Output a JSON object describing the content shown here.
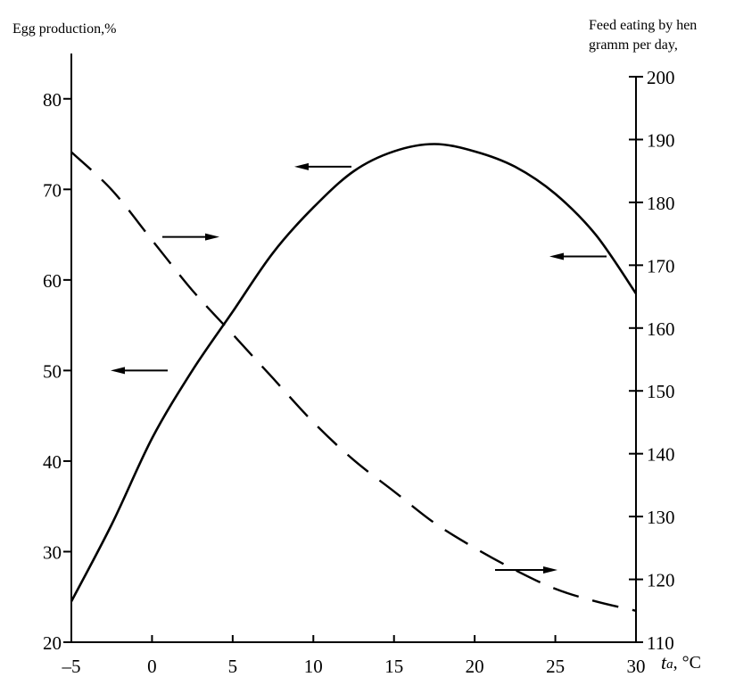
{
  "chart_data": {
    "type": "line",
    "title": "",
    "xlabel_var": "t",
    "xlabel_sub": "a",
    "xlabel_unit": ", °C",
    "ylabel_left": "Egg production,%",
    "ylabel_right_line1": "Feed eating by hen",
    "ylabel_right_line2": "gramm per day,",
    "xlim": [
      -5,
      30
    ],
    "ylim_left": [
      20,
      85
    ],
    "ylim_right": [
      110,
      200
    ],
    "grid": false,
    "x_ticks": [
      -5,
      0,
      5,
      10,
      15,
      20,
      25,
      30
    ],
    "x_tick_labels": [
      "–5",
      "0",
      "5",
      "10",
      "15",
      "20",
      "25",
      "30"
    ],
    "y_left_ticks": [
      20,
      30,
      40,
      50,
      60,
      70,
      80
    ],
    "y_left_tick_labels": [
      "20",
      "30",
      "40",
      "50",
      "60",
      "70",
      "80"
    ],
    "y_right_ticks": [
      110,
      120,
      130,
      140,
      150,
      160,
      170,
      180,
      190,
      200
    ],
    "y_right_tick_labels": [
      "110",
      "120",
      "130",
      "140",
      "150",
      "160",
      "170",
      "180",
      "190",
      "200"
    ],
    "series": [
      {
        "axis": "left",
        "style": "solid",
        "x": [
          -5,
          -2.5,
          0,
          2.5,
          5,
          7.5,
          10,
          12.5,
          15,
          17.5,
          20,
          22.5,
          25,
          27.5,
          30
        ],
        "values": [
          24.5,
          33,
          42.5,
          50,
          56.5,
          63,
          68,
          72,
          74.2,
          75,
          74.2,
          72.5,
          69.5,
          65,
          58.5
        ]
      },
      {
        "axis": "right",
        "style": "dashed",
        "x": [
          -5,
          -2.5,
          0,
          2.5,
          5,
          7.5,
          10,
          12.5,
          15,
          17.5,
          20,
          22.5,
          25,
          27.5,
          30
        ],
        "values": [
          188,
          182,
          174,
          166,
          159,
          152,
          145,
          139,
          134,
          129,
          125,
          121.5,
          118.5,
          116.5,
          115
        ]
      }
    ]
  }
}
